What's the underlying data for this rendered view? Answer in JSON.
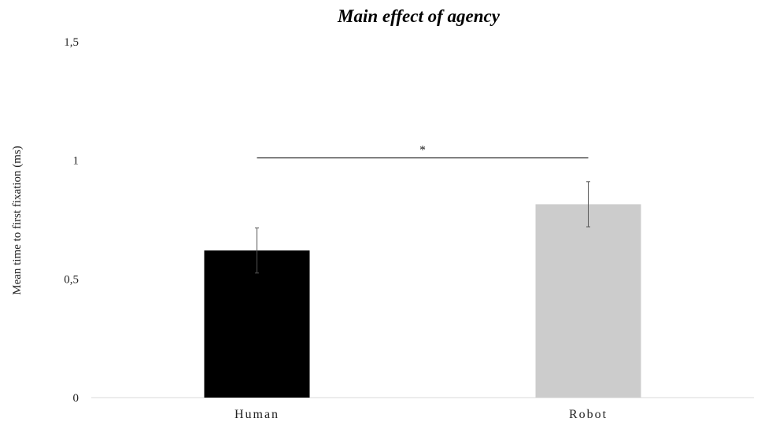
{
  "chart_data": {
    "type": "bar",
    "title": "Main effect of agency",
    "xlabel": "",
    "ylabel": "Mean time to first fixation (ms)",
    "categories": [
      "Human",
      "Robot"
    ],
    "values": [
      0.62,
      0.815
    ],
    "error": [
      0.095,
      0.095
    ],
    "colors": [
      "#000000",
      "#cccccc"
    ],
    "ylim": [
      0,
      1.5
    ],
    "yticks": [
      {
        "value": 0,
        "label": "0"
      },
      {
        "value": 0.5,
        "label": "0,5"
      },
      {
        "value": 1,
        "label": "1"
      },
      {
        "value": 1.5,
        "label": "1,5"
      }
    ],
    "grid": false,
    "legend": "none",
    "significance": {
      "from": "Human",
      "to": "Robot",
      "value": 1.01,
      "label": "*"
    }
  }
}
